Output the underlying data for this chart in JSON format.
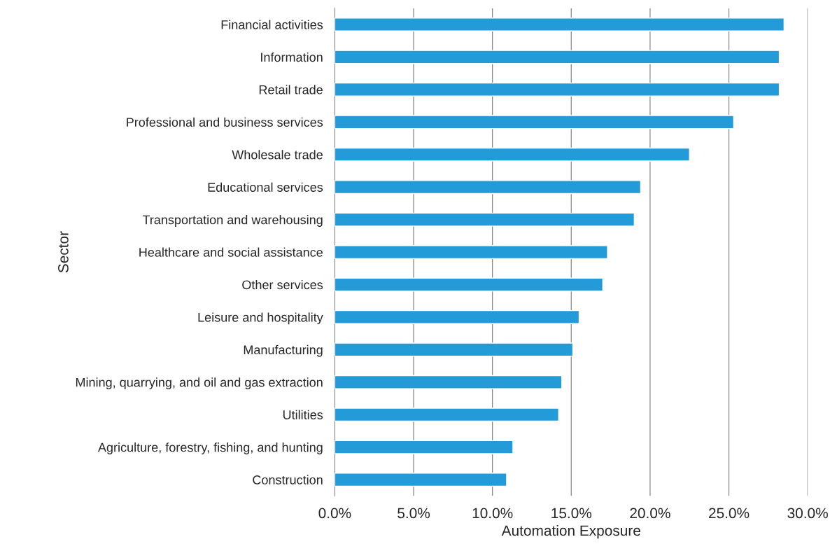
{
  "chart_data": {
    "type": "bar",
    "orientation": "horizontal",
    "xlabel": "Automation Exposure",
    "ylabel": "Sector",
    "categories": [
      "Financial activities",
      "Information",
      "Retail trade",
      "Professional and business services",
      "Wholesale trade",
      "Educational services",
      "Transportation and warehousing",
      "Healthcare and social assistance",
      "Other services",
      "Leisure and hospitality",
      "Manufacturing",
      "Mining, quarrying, and oil and gas extraction",
      "Utilities",
      "Agriculture, forestry, fishing, and hunting",
      "Construction"
    ],
    "values": [
      28.5,
      28.2,
      28.2,
      25.3,
      22.5,
      19.4,
      19.0,
      17.3,
      17.0,
      15.5,
      15.1,
      14.4,
      14.2,
      11.3,
      10.9
    ],
    "color": "#229bd8",
    "xlim": [
      0,
      30
    ],
    "xticks": [
      {
        "value": 0,
        "label": "0.0%"
      },
      {
        "value": 5,
        "label": "5.0%"
      },
      {
        "value": 10,
        "label": "10.0%"
      },
      {
        "value": 15,
        "label": "15.0%"
      },
      {
        "value": 20,
        "label": "20.0%"
      },
      {
        "value": 25,
        "label": "25.0%"
      },
      {
        "value": 30,
        "label": "30.0%"
      }
    ],
    "grid": "x",
    "legend": false
  }
}
